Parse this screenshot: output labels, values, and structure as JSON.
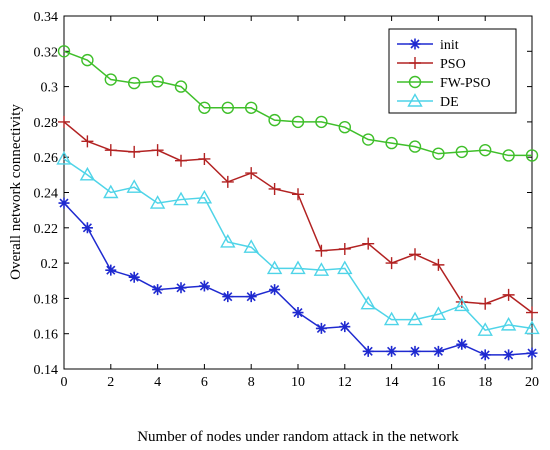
{
  "chart_data": {
    "type": "line",
    "title": "",
    "xlabel": "Number of nodes under random attack in the network",
    "ylabel": "Overall network connectivity",
    "xlim": [
      0,
      20
    ],
    "ylim": [
      0.14,
      0.34
    ],
    "x_ticks": [
      0,
      2,
      4,
      6,
      8,
      10,
      12,
      14,
      16,
      18,
      20
    ],
    "x_tick_labels": [
      "0",
      "2",
      "4",
      "6",
      "8",
      "10",
      "12",
      "14",
      "16",
      "18",
      "20"
    ],
    "y_ticks": [
      0.14,
      0.16,
      0.18,
      0.2,
      0.22,
      0.24,
      0.26,
      0.28,
      0.3,
      0.32,
      0.34
    ],
    "y_tick_labels": [
      "0.14",
      "0.16",
      "0.18",
      "0.2",
      "0.22",
      "0.24",
      "0.26",
      "0.28",
      "0.3",
      "0.32",
      "0.34"
    ],
    "grid": false,
    "legend_position": "top-right",
    "x": [
      0,
      1,
      2,
      3,
      4,
      5,
      6,
      7,
      8,
      9,
      10,
      11,
      12,
      13,
      14,
      15,
      16,
      17,
      18,
      19,
      20
    ],
    "series": [
      {
        "name": "init",
        "color": "#1f2ad0",
        "marker": "asterisk",
        "values": [
          0.234,
          0.22,
          0.196,
          0.192,
          0.185,
          0.186,
          0.187,
          0.181,
          0.181,
          0.185,
          0.172,
          0.163,
          0.164,
          0.15,
          0.15,
          0.15,
          0.15,
          0.154,
          0.148,
          0.148,
          0.149
        ]
      },
      {
        "name": "PSO",
        "color": "#b22222",
        "marker": "plus",
        "values": [
          0.28,
          0.269,
          0.264,
          0.263,
          0.264,
          0.258,
          0.259,
          0.246,
          0.251,
          0.242,
          0.239,
          0.207,
          0.208,
          0.211,
          0.2,
          0.205,
          0.199,
          0.178,
          0.177,
          0.182,
          0.172
        ]
      },
      {
        "name": "FW-PSO",
        "color": "#3fbf2a",
        "marker": "circle",
        "values": [
          0.32,
          0.315,
          0.304,
          0.302,
          0.303,
          0.3,
          0.288,
          0.288,
          0.288,
          0.281,
          0.28,
          0.28,
          0.277,
          0.27,
          0.268,
          0.266,
          0.262,
          0.263,
          0.264,
          0.261,
          0.261
        ]
      },
      {
        "name": "DE",
        "color": "#4fd4e8",
        "marker": "triangle",
        "values": [
          0.259,
          0.25,
          0.24,
          0.243,
          0.234,
          0.236,
          0.237,
          0.212,
          0.209,
          0.197,
          0.197,
          0.196,
          0.197,
          0.177,
          0.168,
          0.168,
          0.171,
          0.176,
          0.162,
          0.165,
          0.163
        ]
      }
    ]
  }
}
